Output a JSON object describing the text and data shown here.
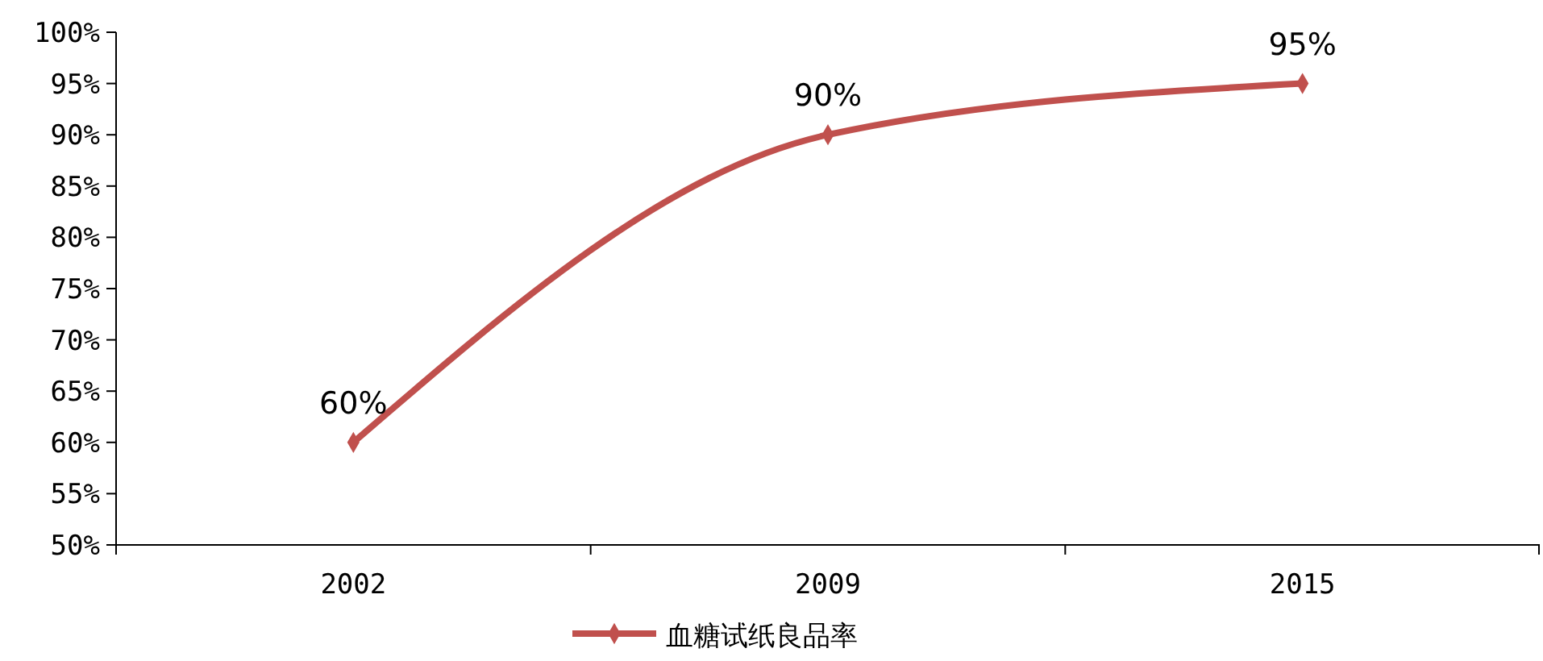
{
  "chart_data": {
    "type": "line",
    "categories": [
      "2002",
      "2009",
      "2015"
    ],
    "series": [
      {
        "name": "血糖试纸良品率",
        "color": "#c0504d",
        "values": [
          60,
          90,
          95
        ],
        "value_labels": [
          "60%",
          "90%",
          "95%"
        ]
      }
    ],
    "ylim": [
      50,
      100
    ],
    "yticks": [
      {
        "value": 50,
        "label": "50%"
      },
      {
        "value": 55,
        "label": "55%"
      },
      {
        "value": 60,
        "label": "60%"
      },
      {
        "value": 65,
        "label": "65%"
      },
      {
        "value": 70,
        "label": "70%"
      },
      {
        "value": 75,
        "label": "75%"
      },
      {
        "value": 80,
        "label": "80%"
      },
      {
        "value": 85,
        "label": "85%"
      },
      {
        "value": 90,
        "label": "90%"
      },
      {
        "value": 95,
        "label": "95%"
      },
      {
        "value": 100,
        "label": "100%"
      }
    ],
    "marker": "diamond",
    "line_style": "solid",
    "grid": false,
    "legend": "bottom"
  }
}
